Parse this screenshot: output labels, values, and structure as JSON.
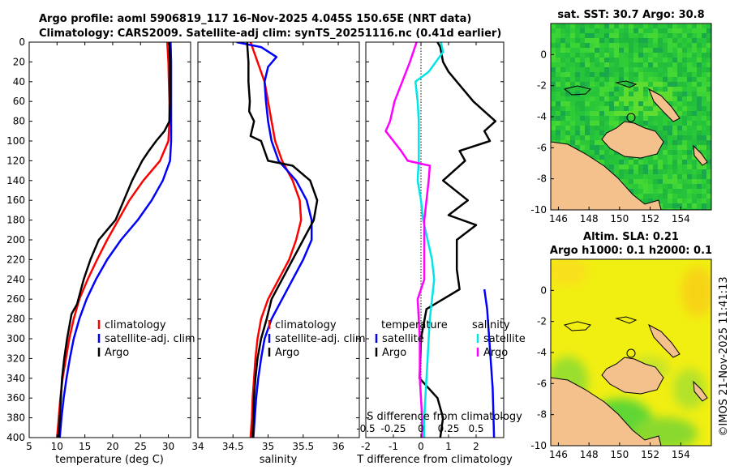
{
  "title_line1": "Argo profile: aoml 5906819_117 16-Nov-2025 4.045S 150.65E (NRT data)",
  "title_line2": "Climatology: CARS2009. Satellite-adj clim: synTS_20251116.nc (0.41d earlier)",
  "watermark": "©IMOS 21-Nov-2025 11:41:13",
  "colors": {
    "climatology": "#ff0000",
    "satellite": "#0000ff",
    "argo": "#000000",
    "sat_sal": "#00e6e6",
    "argo_sal": "#ff00ff",
    "land": "#f4c08c"
  },
  "chart_data": [
    {
      "id": "temperature",
      "type": "line",
      "xlabel": "temperature (deg C)",
      "xlim": [
        5,
        34
      ],
      "ylim": [
        400,
        0
      ],
      "xticks": [
        "5",
        "10",
        "15",
        "20",
        "25",
        "30"
      ],
      "xtick_values": [
        5,
        10,
        15,
        20,
        25,
        30
      ],
      "yticks": [
        "0",
        "20",
        "40",
        "60",
        "80",
        "100",
        "120",
        "140",
        "160",
        "180",
        "200",
        "220",
        "240",
        "260",
        "280",
        "300",
        "320",
        "340",
        "360",
        "380",
        "400"
      ],
      "ytick_values": [
        0,
        20,
        40,
        60,
        80,
        100,
        120,
        140,
        160,
        180,
        200,
        220,
        240,
        260,
        280,
        300,
        320,
        340,
        360,
        380,
        400
      ],
      "legend": [
        "climatology",
        "satellite-adj. clim",
        "Argo"
      ],
      "series": [
        {
          "name": "climatology",
          "color": "#ff0000",
          "depth": [
            0,
            20,
            40,
            60,
            80,
            100,
            120,
            140,
            160,
            180,
            200,
            220,
            240,
            260,
            280,
            300,
            320,
            340,
            360,
            380,
            400
          ],
          "values": [
            29.8,
            30.0,
            30.1,
            30.2,
            30.2,
            30.0,
            28.5,
            25.5,
            23.0,
            21.0,
            19.0,
            17.2,
            15.5,
            14.0,
            13.0,
            12.2,
            11.6,
            11.0,
            10.6,
            10.3,
            10.0
          ]
        },
        {
          "name": "satellite-adj. clim",
          "color": "#0000ff",
          "depth": [
            0,
            20,
            40,
            60,
            80,
            100,
            120,
            140,
            160,
            180,
            200,
            220,
            240,
            260,
            280,
            300,
            320,
            340,
            360,
            380,
            400
          ],
          "values": [
            30.4,
            30.5,
            30.5,
            30.5,
            30.5,
            30.5,
            30.3,
            29.0,
            27.0,
            24.5,
            21.5,
            19.0,
            17.0,
            15.3,
            14.0,
            13.0,
            12.3,
            11.7,
            11.2,
            10.8,
            10.5
          ]
        },
        {
          "name": "Argo",
          "color": "#000000",
          "depth": [
            0,
            20,
            40,
            60,
            80,
            90,
            100,
            110,
            120,
            140,
            160,
            180,
            200,
            220,
            240,
            265,
            275,
            300,
            320,
            340,
            360,
            380,
            400
          ],
          "values": [
            30.2,
            30.3,
            30.3,
            30.3,
            30.2,
            29.3,
            27.8,
            26.5,
            25.3,
            23.5,
            22.0,
            20.5,
            17.5,
            16.0,
            14.8,
            13.6,
            12.6,
            11.8,
            11.3,
            10.9,
            10.7,
            10.5,
            10.3
          ]
        }
      ]
    },
    {
      "id": "salinity",
      "type": "line",
      "xlabel": "salinity",
      "xlim": [
        34,
        36.3
      ],
      "ylim": [
        400,
        0
      ],
      "xticks": [
        "34",
        "34.5",
        "35",
        "35.5",
        "36"
      ],
      "xtick_values": [
        34,
        34.5,
        35,
        35.5,
        36
      ],
      "legend": [
        "climatology",
        "satellite-adj. clim",
        "Argo"
      ],
      "series": [
        {
          "name": "climatology",
          "color": "#ff0000",
          "depth": [
            0,
            20,
            40,
            60,
            80,
            100,
            120,
            140,
            160,
            180,
            200,
            220,
            240,
            260,
            280,
            300,
            320,
            340,
            360,
            380,
            400
          ],
          "values": [
            34.75,
            34.85,
            34.95,
            35.0,
            35.05,
            35.1,
            35.2,
            35.35,
            35.45,
            35.47,
            35.4,
            35.3,
            35.15,
            35.0,
            34.9,
            34.85,
            34.82,
            34.8,
            34.78,
            34.77,
            34.75
          ]
        },
        {
          "name": "satellite-adj. clim",
          "color": "#0000ff",
          "depth": [
            0,
            5,
            15,
            25,
            40,
            60,
            80,
            100,
            120,
            140,
            160,
            180,
            200,
            220,
            240,
            260,
            280,
            300,
            320,
            340,
            360,
            380,
            400
          ],
          "values": [
            34.55,
            34.9,
            35.12,
            35.0,
            34.95,
            34.97,
            35.0,
            35.05,
            35.15,
            35.4,
            35.55,
            35.62,
            35.62,
            35.5,
            35.35,
            35.2,
            35.05,
            34.95,
            34.9,
            34.86,
            34.83,
            34.81,
            34.79
          ]
        },
        {
          "name": "Argo",
          "color": "#000000",
          "depth": [
            0,
            20,
            40,
            60,
            70,
            80,
            95,
            100,
            120,
            125,
            140,
            160,
            180,
            200,
            220,
            240,
            260,
            280,
            300,
            320,
            340,
            360,
            380,
            400
          ],
          "values": [
            34.7,
            34.72,
            34.72,
            34.74,
            34.73,
            34.8,
            34.75,
            34.9,
            35.0,
            35.35,
            35.6,
            35.7,
            35.65,
            35.5,
            35.35,
            35.2,
            35.05,
            34.98,
            34.9,
            34.85,
            34.82,
            34.8,
            34.79,
            34.78
          ]
        }
      ]
    },
    {
      "id": "difference",
      "type": "line",
      "xlabel": "T difference from climatology",
      "xlabel_top": "S difference from climatology",
      "xlim": [
        -2,
        3
      ],
      "ylim": [
        400,
        0
      ],
      "xticks": [
        "-2",
        "-1",
        "0",
        "1",
        "2"
      ],
      "xtick_values": [
        -2,
        -1,
        0,
        1,
        2
      ],
      "xticks_top": [
        "-0.5",
        "-0.25",
        "0",
        "0.25",
        "0.5"
      ],
      "legend_temperature_title": "temperature",
      "legend_salinity_title": "salinity",
      "legend_temperature": [
        "satellite",
        "Argo"
      ],
      "legend_salinity": [
        "satellite",
        "Argo"
      ],
      "series": [
        {
          "name": "T satellite",
          "color": "#0000ff",
          "depth": [
            250,
            270,
            290,
            310,
            330,
            350,
            370,
            400
          ],
          "values": [
            2.3,
            2.4,
            2.45,
            2.5,
            2.55,
            2.6,
            2.62,
            2.65
          ]
        },
        {
          "name": "T Argo",
          "color": "#000000",
          "depth": [
            0,
            5,
            20,
            30,
            40,
            60,
            70,
            80,
            90,
            100,
            110,
            120,
            140,
            160,
            175,
            185,
            200,
            230,
            250,
            270,
            300,
            340,
            360,
            380,
            400
          ],
          "values": [
            0.6,
            0.7,
            0.8,
            1.0,
            1.3,
            1.9,
            2.3,
            2.7,
            2.3,
            2.5,
            1.4,
            1.6,
            0.8,
            1.7,
            1.0,
            2.0,
            1.3,
            1.3,
            1.4,
            0.2,
            0.0,
            -0.05,
            0.6,
            0.8,
            0.7
          ]
        },
        {
          "name": "S satellite",
          "color": "#00e6e6",
          "depth": [
            0,
            10,
            30,
            40,
            60,
            80,
            100,
            120,
            140,
            160,
            180,
            200,
            220,
            240,
            260,
            280,
            300,
            320,
            340,
            360,
            380,
            400
          ],
          "values": [
            0.18,
            0.2,
            0.07,
            -0.05,
            -0.03,
            -0.02,
            -0.02,
            -0.02,
            -0.03,
            0.0,
            0.02,
            0.06,
            0.1,
            0.12,
            0.1,
            0.08,
            0.07,
            0.06,
            0.05,
            0.04,
            0.03,
            0.03
          ]
        },
        {
          "name": "S Argo",
          "color": "#ff00ff",
          "depth": [
            0,
            20,
            40,
            60,
            80,
            90,
            100,
            110,
            120,
            125,
            140,
            160,
            180,
            200,
            240,
            260,
            280,
            300,
            340,
            360,
            380,
            400
          ],
          "values": [
            -0.04,
            -0.1,
            -0.17,
            -0.24,
            -0.28,
            -0.32,
            -0.25,
            -0.18,
            -0.12,
            0.08,
            0.07,
            0.05,
            0.03,
            0.03,
            0.03,
            -0.03,
            -0.02,
            -0.01,
            -0.01,
            0.0,
            0.01,
            0.01
          ]
        }
      ]
    },
    {
      "id": "sst_map",
      "type": "heatmap",
      "title": "sat. SST: 30.7 Argo: 30.8",
      "xlim": [
        145.5,
        156
      ],
      "ylim": [
        -10,
        2
      ],
      "xticks": [
        "146",
        "148",
        "150",
        "152",
        "154"
      ],
      "xtick_values": [
        146,
        148,
        150,
        152,
        154
      ],
      "yticks": [
        "0",
        "-2",
        "-4",
        "-6",
        "-8",
        "-10"
      ],
      "ytick_values": [
        0,
        -2,
        -4,
        -6,
        -8,
        -10
      ],
      "argo_position": [
        150.65,
        -4.045
      ]
    },
    {
      "id": "sla_map",
      "type": "heatmap",
      "title": "Altim. SLA: 0.21",
      "subtitle": "Argo h1000: 0.1 h2000: 0.1",
      "xlim": [
        145.5,
        156
      ],
      "ylim": [
        -10,
        2
      ],
      "xticks": [
        "146",
        "148",
        "150",
        "152",
        "154"
      ],
      "xtick_values": [
        146,
        148,
        150,
        152,
        154
      ],
      "yticks": [
        "0",
        "-2",
        "-4",
        "-6",
        "-8",
        "-10"
      ],
      "ytick_values": [
        0,
        -2,
        -4,
        -6,
        -8,
        -10
      ],
      "argo_position": [
        150.65,
        -4.045
      ]
    }
  ]
}
